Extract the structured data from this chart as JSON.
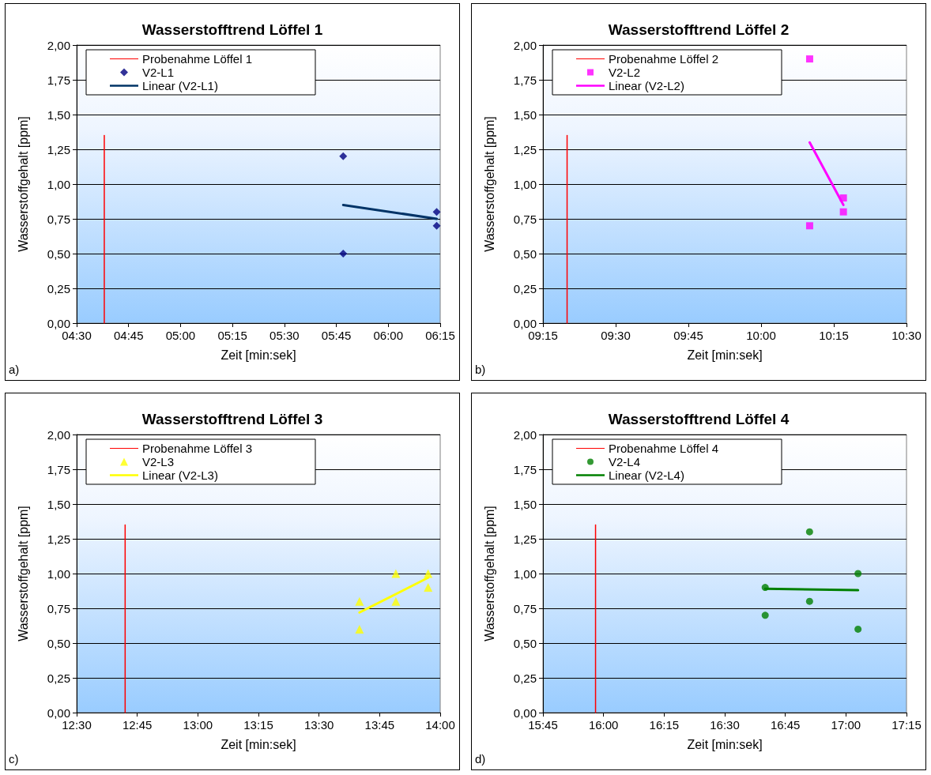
{
  "chart_data": [
    {
      "type": "scatter",
      "title": "Wasserstofftrend Löffel 1",
      "xlabel": "Zeit [min:sek]",
      "ylabel": "Wasserstoffgehalt [ppm]",
      "annotations": [
        "a)"
      ],
      "xlim": [
        4.5,
        6.25
      ],
      "xticks": [
        {
          "value": 4.5,
          "label": "04:30"
        },
        {
          "value": 4.75,
          "label": "04:45"
        },
        {
          "value": 5,
          "label": "05:00"
        },
        {
          "value": 5.25,
          "label": "05:15"
        },
        {
          "value": 5.5,
          "label": "05:30"
        },
        {
          "value": 5.75,
          "label": "05:45"
        },
        {
          "value": 6,
          "label": "06:00"
        },
        {
          "value": 6.25,
          "label": "06:15"
        }
      ],
      "ylim": [
        0,
        2
      ],
      "yticks": [
        {
          "value": 0,
          "label": "0,00"
        },
        {
          "value": 0.25,
          "label": "0,25"
        },
        {
          "value": 0.5,
          "label": "0,50"
        },
        {
          "value": 0.75,
          "label": "0,75"
        },
        {
          "value": 1,
          "label": "1,00"
        },
        {
          "value": 1.25,
          "label": "1,25"
        },
        {
          "value": 1.5,
          "label": "1,50"
        },
        {
          "value": 1.75,
          "label": "1,75"
        },
        {
          "value": 2,
          "label": "2,00"
        }
      ],
      "grid": "y",
      "legend": "top left",
      "series": [
        {
          "name": "Probenahme Löffel 1",
          "type": "line",
          "marker": "none",
          "color": "#ff0000",
          "x": [
            4.633,
            4.633
          ],
          "values": [
            0,
            1.35
          ]
        },
        {
          "name": "V2-L1",
          "type": "scatter",
          "marker": "diamond",
          "color": "#000080",
          "x": [
            5.783,
            5.783,
            6.233,
            6.233
          ],
          "values": [
            1.2,
            0.5,
            0.8,
            0.7
          ]
        },
        {
          "name": "Linear (V2-L1)",
          "type": "line",
          "marker": "none",
          "color": "#003366",
          "x": [
            5.783,
            6.233
          ],
          "values": [
            0.85,
            0.75
          ]
        }
      ]
    },
    {
      "type": "scatter",
      "title": "Wasserstofftrend Löffel 2",
      "xlabel": "Zeit [min:sek]",
      "ylabel": "Wasserstoffgehalt [ppm]",
      "annotations": [
        "b)"
      ],
      "xlim": [
        9.25,
        10.5
      ],
      "xticks": [
        {
          "value": 9.25,
          "label": "09:15"
        },
        {
          "value": 9.5,
          "label": "09:30"
        },
        {
          "value": 9.75,
          "label": "09:45"
        },
        {
          "value": 10,
          "label": "10:00"
        },
        {
          "value": 10.25,
          "label": "10:15"
        },
        {
          "value": 10.5,
          "label": "10:30"
        }
      ],
      "ylim": [
        0,
        2
      ],
      "yticks": [
        {
          "value": 0,
          "label": "0,00"
        },
        {
          "value": 0.25,
          "label": "0,25"
        },
        {
          "value": 0.5,
          "label": "0,50"
        },
        {
          "value": 0.75,
          "label": "0,75"
        },
        {
          "value": 1,
          "label": "1,00"
        },
        {
          "value": 1.25,
          "label": "1,25"
        },
        {
          "value": 1.5,
          "label": "1,50"
        },
        {
          "value": 1.75,
          "label": "1,75"
        },
        {
          "value": 2,
          "label": "2,00"
        }
      ],
      "grid": "y",
      "legend": "top left",
      "series": [
        {
          "name": "Probenahme Löffel 2",
          "type": "line",
          "marker": "none",
          "color": "#ff0000",
          "x": [
            9.333,
            9.333
          ],
          "values": [
            0,
            1.35
          ]
        },
        {
          "name": "V2-L2",
          "type": "scatter",
          "marker": "square",
          "color": "#ff00ff",
          "x": [
            10.167,
            10.167,
            10.283,
            10.283
          ],
          "values": [
            1.9,
            0.7,
            0.9,
            0.8
          ]
        },
        {
          "name": "Linear (V2-L2)",
          "type": "line",
          "marker": "none",
          "color": "#ff00ff",
          "x": [
            10.167,
            10.283
          ],
          "values": [
            1.3,
            0.85
          ]
        }
      ]
    },
    {
      "type": "scatter",
      "title": "Wasserstofftrend Löffel 3",
      "xlabel": "Zeit [min:sek]",
      "ylabel": "Wasserstoffgehalt [ppm]",
      "annotations": [
        "c)"
      ],
      "xlim": [
        12.5,
        14
      ],
      "xticks": [
        {
          "value": 12.5,
          "label": "12:30"
        },
        {
          "value": 12.75,
          "label": "12:45"
        },
        {
          "value": 13,
          "label": "13:00"
        },
        {
          "value": 13.25,
          "label": "13:15"
        },
        {
          "value": 13.5,
          "label": "13:30"
        },
        {
          "value": 13.75,
          "label": "13:45"
        },
        {
          "value": 14,
          "label": "14:00"
        }
      ],
      "ylim": [
        0,
        2
      ],
      "yticks": [
        {
          "value": 0,
          "label": "0,00"
        },
        {
          "value": 0.25,
          "label": "0,25"
        },
        {
          "value": 0.5,
          "label": "0,50"
        },
        {
          "value": 0.75,
          "label": "0,75"
        },
        {
          "value": 1,
          "label": "1,00"
        },
        {
          "value": 1.25,
          "label": "1,25"
        },
        {
          "value": 1.5,
          "label": "1,50"
        },
        {
          "value": 1.75,
          "label": "1,75"
        },
        {
          "value": 2,
          "label": "2,00"
        }
      ],
      "grid": "y",
      "legend": "top left",
      "series": [
        {
          "name": "Probenahme Löffel 3",
          "type": "line",
          "marker": "none",
          "color": "#ff0000",
          "x": [
            12.7,
            12.7
          ],
          "values": [
            0,
            1.35
          ]
        },
        {
          "name": "V2-L3",
          "type": "scatter",
          "marker": "triangle",
          "color": "#ffff00",
          "x": [
            13.667,
            13.667,
            13.817,
            13.817,
            13.95,
            13.95
          ],
          "values": [
            0.8,
            0.6,
            1.0,
            0.8,
            1.0,
            0.9
          ]
        },
        {
          "name": "Linear (V2-L3)",
          "type": "line",
          "marker": "none",
          "color": "#ffff00",
          "x": [
            13.667,
            13.95
          ],
          "values": [
            0.72,
            0.97
          ]
        }
      ]
    },
    {
      "type": "scatter",
      "title": "Wasserstofftrend Löffel 4",
      "xlabel": "Zeit [min:sek]",
      "ylabel": "Wasserstoffgehalt [ppm]",
      "annotations": [
        "d)"
      ],
      "xlim": [
        15.75,
        17.25
      ],
      "xticks": [
        {
          "value": 15.75,
          "label": "15:45"
        },
        {
          "value": 16,
          "label": "16:00"
        },
        {
          "value": 16.25,
          "label": "16:15"
        },
        {
          "value": 16.5,
          "label": "16:30"
        },
        {
          "value": 16.75,
          "label": "16:45"
        },
        {
          "value": 17,
          "label": "17:00"
        },
        {
          "value": 17.25,
          "label": "17:15"
        }
      ],
      "ylim": [
        0,
        2
      ],
      "yticks": [
        {
          "value": 0,
          "label": "0,00"
        },
        {
          "value": 0.25,
          "label": "0,25"
        },
        {
          "value": 0.5,
          "label": "0,50"
        },
        {
          "value": 0.75,
          "label": "0,75"
        },
        {
          "value": 1,
          "label": "1,00"
        },
        {
          "value": 1.25,
          "label": "1,25"
        },
        {
          "value": 1.5,
          "label": "1,50"
        },
        {
          "value": 1.75,
          "label": "1,75"
        },
        {
          "value": 2,
          "label": "2,00"
        }
      ],
      "grid": "y",
      "legend": "top left",
      "series": [
        {
          "name": "Probenahme Löffel 4",
          "type": "line",
          "marker": "none",
          "color": "#ff0000",
          "x": [
            15.967,
            15.967
          ],
          "values": [
            0,
            1.35
          ]
        },
        {
          "name": "V2-L4",
          "type": "scatter",
          "marker": "circle",
          "color": "#008000",
          "x": [
            16.667,
            16.667,
            16.85,
            16.85,
            17.05,
            17.05
          ],
          "values": [
            0.9,
            0.7,
            1.3,
            0.8,
            1.0,
            0.6
          ]
        },
        {
          "name": "Linear (V2-L4)",
          "type": "line",
          "marker": "none",
          "color": "#008000",
          "x": [
            16.667,
            17.05
          ],
          "values": [
            0.89,
            0.88
          ]
        }
      ]
    }
  ]
}
